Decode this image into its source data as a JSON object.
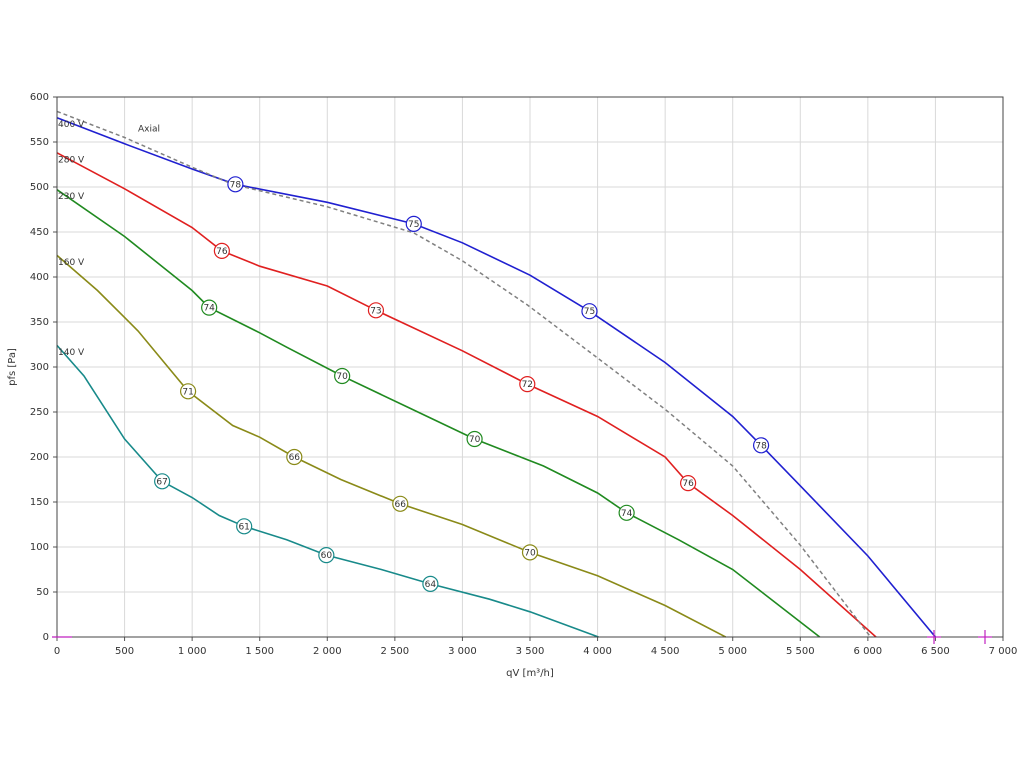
{
  "chart_data": {
    "type": "line",
    "xlabel": "qV [m³/h]",
    "ylabel": "pfs [Pa]",
    "xlim": [
      0,
      7000
    ],
    "ylim": [
      0,
      600
    ],
    "xticks": [
      0,
      500,
      {
        "value": 1000,
        "label": "1 000"
      },
      {
        "value": 1500,
        "label": "1 500"
      },
      {
        "value": 2000,
        "label": "2 000"
      },
      {
        "value": 2500,
        "label": "2 500"
      },
      {
        "value": 3000,
        "label": "3 000"
      },
      {
        "value": 3500,
        "label": "3 500"
      },
      {
        "value": 4000,
        "label": "4 000"
      },
      {
        "value": 4500,
        "label": "4 500"
      },
      {
        "value": 5000,
        "label": "5 000"
      },
      {
        "value": 5500,
        "label": "5 500"
      },
      {
        "value": 6000,
        "label": "6 000"
      },
      {
        "value": 6500,
        "label": "6 500"
      },
      {
        "value": 7000,
        "label": "7 000"
      }
    ],
    "yticks": [
      0,
      50,
      100,
      150,
      200,
      250,
      300,
      350,
      400,
      450,
      500,
      550,
      600
    ],
    "grid": true,
    "series": [
      {
        "name": "400 V",
        "color": "#2020d0",
        "x": [
          0,
          500,
          1000,
          1320,
          2000,
          2640,
          3000,
          3500,
          3940,
          4500,
          5000,
          5210,
          5500,
          6000,
          6500
        ],
        "values": [
          577,
          548,
          520,
          503,
          483,
          459,
          438,
          402,
          362,
          305,
          245,
          213,
          168,
          90,
          0
        ],
        "markers": [
          {
            "x": 1320,
            "y": 503,
            "label": 78
          },
          {
            "x": 2640,
            "y": 459,
            "label": 75
          },
          {
            "x": 3940,
            "y": 362,
            "label": 75
          },
          {
            "x": 5210,
            "y": 213,
            "label": 78
          }
        ]
      },
      {
        "name": "280 V",
        "color": "#e02020",
        "x": [
          0,
          500,
          1000,
          1220,
          1500,
          2000,
          2360,
          3000,
          3480,
          4000,
          4500,
          4670,
          5000,
          5500,
          6060
        ],
        "values": [
          538,
          498,
          455,
          429,
          412,
          390,
          363,
          318,
          281,
          245,
          200,
          171,
          135,
          75,
          0
        ],
        "markers": [
          {
            "x": 1220,
            "y": 429,
            "label": 76
          },
          {
            "x": 2360,
            "y": 363,
            "label": 73
          },
          {
            "x": 3480,
            "y": 281,
            "label": 72
          },
          {
            "x": 4670,
            "y": 171,
            "label": 76
          }
        ]
      },
      {
        "name": "230 V",
        "color": "#208a20",
        "x": [
          0,
          500,
          1000,
          1126,
          1500,
          1700,
          2110,
          2600,
          3090,
          3600,
          4000,
          4215,
          4600,
          5000,
          5644
        ],
        "values": [
          497,
          445,
          385,
          366,
          338,
          322,
          290,
          255,
          220,
          190,
          160,
          138,
          108,
          75,
          0
        ],
        "markers": [
          {
            "x": 1126,
            "y": 366,
            "label": 74
          },
          {
            "x": 2110,
            "y": 290,
            "label": 70
          },
          {
            "x": 3090,
            "y": 220,
            "label": 70
          },
          {
            "x": 4215,
            "y": 138,
            "label": 74
          }
        ]
      },
      {
        "name": "160 V",
        "color": "#8a8a18",
        "x": [
          0,
          300,
          600,
          970,
          1300,
          1500,
          1756,
          2100,
          2540,
          3000,
          3500,
          4000,
          4500,
          4948
        ],
        "values": [
          424,
          385,
          340,
          273,
          235,
          222,
          200,
          175,
          148,
          125,
          94,
          68,
          35,
          0
        ],
        "markers": [
          {
            "x": 970,
            "y": 273,
            "label": 71
          },
          {
            "x": 1756,
            "y": 200,
            "label": 66
          },
          {
            "x": 2540,
            "y": 148,
            "label": 66
          },
          {
            "x": 3500,
            "y": 94,
            "label": 70
          }
        ]
      },
      {
        "name": "140 V",
        "color": "#188a8a",
        "x": [
          0,
          200,
          500,
          778,
          1000,
          1200,
          1385,
          1700,
          1993,
          2400,
          2763,
          3200,
          3500,
          4007
        ],
        "values": [
          324,
          290,
          220,
          173,
          155,
          135,
          123,
          108,
          91,
          75,
          59,
          42,
          28,
          0
        ],
        "markers": [
          {
            "x": 778,
            "y": 173,
            "label": 67
          },
          {
            "x": 1385,
            "y": 123,
            "label": 61
          },
          {
            "x": 1993,
            "y": 91,
            "label": 60
          },
          {
            "x": 2763,
            "y": 59,
            "label": 64
          }
        ]
      },
      {
        "name": "Axial",
        "color": "#808080",
        "dashed": true,
        "x": [
          0,
          500,
          1000,
          1300,
          2000,
          2640,
          3000,
          3480,
          4000,
          4500,
          5000,
          5500,
          6020
        ],
        "values": [
          584,
          555,
          522,
          503,
          478,
          449,
          418,
          369,
          310,
          253,
          190,
          102,
          0
        ]
      }
    ]
  }
}
